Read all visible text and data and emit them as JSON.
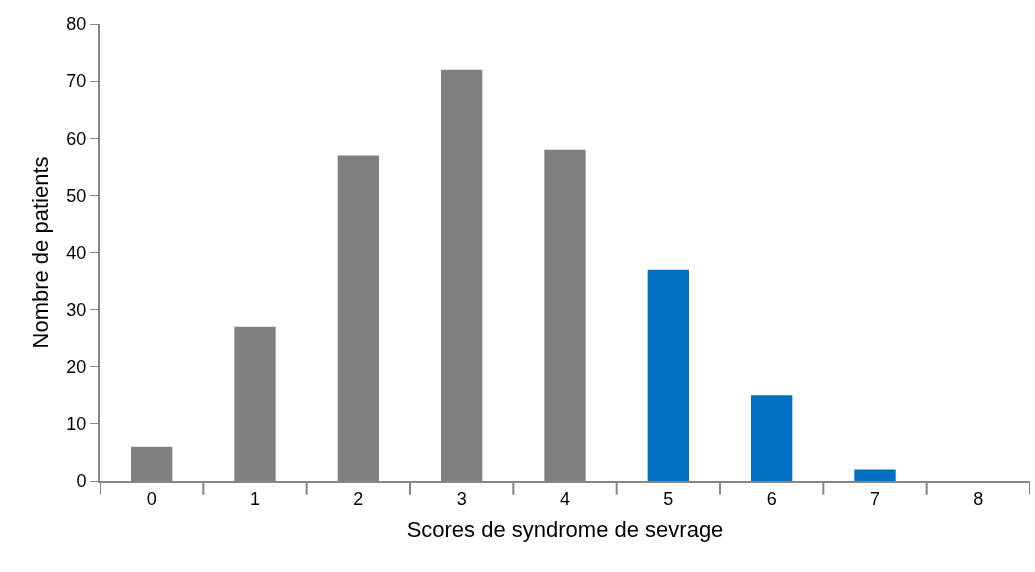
{
  "chart_data": {
    "type": "bar",
    "xlabel": "Scores de syndrome de sevrage",
    "ylabel": "Nombre de patients",
    "categories": [
      "0",
      "1",
      "2",
      "3",
      "4",
      "5",
      "6",
      "7",
      "8"
    ],
    "values": [
      6,
      27,
      57,
      72,
      58,
      37,
      15,
      2,
      0
    ],
    "colors": [
      "#808080",
      "#808080",
      "#808080",
      "#808080",
      "#808080",
      "#0070c0",
      "#0070c0",
      "#0070c0",
      "#0070c0"
    ],
    "ylim": [
      0,
      80
    ],
    "yticks": [
      0,
      10,
      20,
      30,
      40,
      50,
      60,
      70,
      80
    ],
    "grid": false
  }
}
